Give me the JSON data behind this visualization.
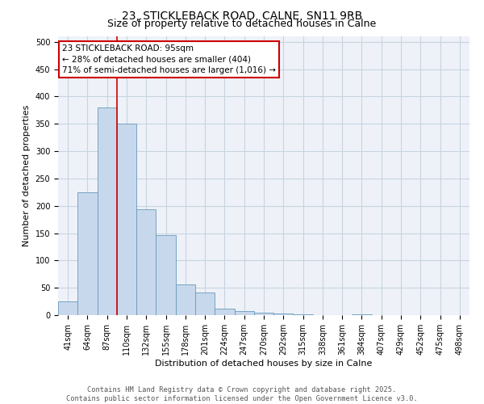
{
  "title_line1": "23, STICKLEBACK ROAD, CALNE, SN11 9RB",
  "title_line2": "Size of property relative to detached houses in Calne",
  "xlabel": "Distribution of detached houses by size in Calne",
  "ylabel": "Number of detached properties",
  "categories": [
    "41sqm",
    "64sqm",
    "87sqm",
    "110sqm",
    "132sqm",
    "155sqm",
    "178sqm",
    "201sqm",
    "224sqm",
    "247sqm",
    "270sqm",
    "292sqm",
    "315sqm",
    "338sqm",
    "361sqm",
    "384sqm",
    "407sqm",
    "429sqm",
    "452sqm",
    "475sqm",
    "498sqm"
  ],
  "values": [
    25,
    225,
    380,
    350,
    193,
    147,
    56,
    41,
    12,
    8,
    5,
    3,
    1,
    0,
    0,
    1,
    0,
    0,
    0,
    0,
    0
  ],
  "bar_color": "#c8d8ec",
  "bar_edge_color": "#6699bb",
  "grid_color": "#c8d4e0",
  "background_color": "#eef2f8",
  "vline_color": "#cc0000",
  "annotation_text": "23 STICKLEBACK ROAD: 95sqm\n← 28% of detached houses are smaller (404)\n71% of semi-detached houses are larger (1,016) →",
  "annotation_box_color": "#cc0000",
  "ylim": [
    0,
    510
  ],
  "yticks": [
    0,
    50,
    100,
    150,
    200,
    250,
    300,
    350,
    400,
    450,
    500
  ],
  "footer": "Contains HM Land Registry data © Crown copyright and database right 2025.\nContains public sector information licensed under the Open Government Licence v3.0.",
  "title_fontsize": 10,
  "subtitle_fontsize": 9,
  "axis_label_fontsize": 8,
  "tick_fontsize": 7,
  "annotation_fontsize": 7.5
}
